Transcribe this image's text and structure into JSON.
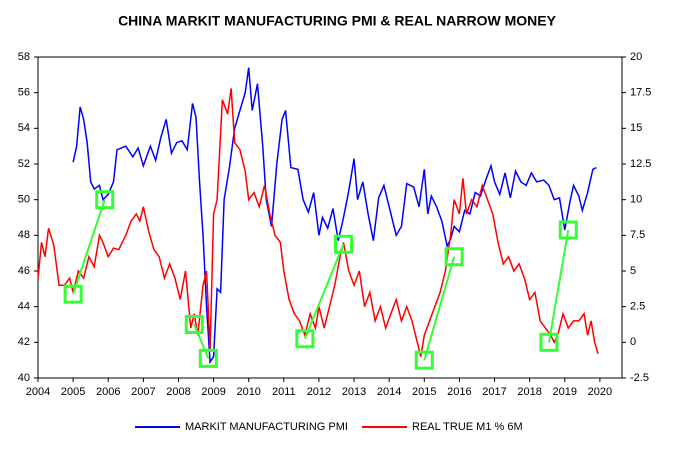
{
  "chart_data": {
    "type": "line",
    "title": "CHINA MARKIT MANUFACTURING PMI & REAL NARROW MONEY",
    "xlim": [
      2004,
      2020.63
    ],
    "xticks": [
      2004,
      2005,
      2006,
      2007,
      2008,
      2009,
      2010,
      2011,
      2012,
      2013,
      2014,
      2015,
      2016,
      2017,
      2018,
      2019,
      2020
    ],
    "ylim": [
      40,
      58
    ],
    "yticks": [
      40,
      42,
      44,
      46,
      48,
      50,
      52,
      54,
      56,
      58
    ],
    "y2lim": [
      -2.5,
      20
    ],
    "y2ticks": [
      -2.5,
      0,
      2.5,
      5,
      7.5,
      10,
      12.5,
      15,
      17.5,
      20
    ],
    "legend": "bottom",
    "series": [
      {
        "name": "MARKIT MANUFACTURING PMI",
        "color": "#0000ff",
        "x": [
          2005.0,
          2005.1,
          2005.2,
          2005.3,
          2005.4,
          2005.5,
          2005.6,
          2005.75,
          2005.85,
          2006.0,
          2006.15,
          2006.25,
          2006.5,
          2006.7,
          2006.85,
          2007.0,
          2007.2,
          2007.35,
          2007.5,
          2007.65,
          2007.8,
          2007.95,
          2008.1,
          2008.25,
          2008.4,
          2008.5,
          2008.6,
          2008.7,
          2008.8,
          2008.9,
          2009.0,
          2009.1,
          2009.2,
          2009.3,
          2009.45,
          2009.6,
          2009.75,
          2009.9,
          2010.0,
          2010.1,
          2010.25,
          2010.4,
          2010.5,
          2010.65,
          2010.8,
          2010.95,
          2011.05,
          2011.2,
          2011.4,
          2011.55,
          2011.7,
          2011.85,
          2012.0,
          2012.1,
          2012.25,
          2012.4,
          2012.55,
          2012.7,
          2012.85,
          2013.0,
          2013.1,
          2013.25,
          2013.4,
          2013.55,
          2013.7,
          2013.85,
          2014.0,
          2014.2,
          2014.35,
          2014.5,
          2014.7,
          2014.85,
          2015.0,
          2015.1,
          2015.2,
          2015.35,
          2015.5,
          2015.65,
          2015.75,
          2015.85,
          2016.0,
          2016.15,
          2016.3,
          2016.45,
          2016.6,
          2016.75,
          2016.9,
          2017.0,
          2017.15,
          2017.3,
          2017.45,
          2017.6,
          2017.75,
          2017.9,
          2018.05,
          2018.2,
          2018.4,
          2018.55,
          2018.7,
          2018.85,
          2019.0,
          2019.15,
          2019.25,
          2019.4,
          2019.5,
          2019.65,
          2019.8,
          2019.9
        ],
        "values": [
          52.1,
          53.0,
          55.2,
          54.5,
          53.2,
          51.0,
          50.6,
          50.8,
          50.0,
          50.3,
          51.0,
          52.8,
          53.0,
          52.4,
          52.9,
          51.9,
          53.0,
          52.2,
          53.5,
          54.5,
          52.6,
          53.2,
          53.3,
          52.8,
          55.4,
          54.6,
          51.0,
          48.0,
          44.0,
          40.9,
          41.2,
          45.0,
          44.8,
          50.0,
          51.8,
          54.0,
          55.0,
          56.0,
          57.4,
          55.0,
          56.5,
          53.0,
          50.0,
          48.5,
          52.0,
          54.5,
          55.0,
          51.8,
          51.7,
          50.0,
          49.3,
          50.4,
          48.0,
          49.0,
          48.4,
          49.5,
          47.7,
          49.0,
          50.5,
          52.3,
          50.0,
          51.0,
          49.2,
          47.7,
          50.1,
          50.8,
          49.6,
          48.0,
          48.5,
          50.9,
          50.7,
          49.6,
          51.7,
          49.2,
          50.2,
          49.6,
          48.8,
          47.4,
          47.8,
          48.5,
          48.2,
          49.4,
          49.2,
          50.4,
          50.2,
          51.1,
          51.9,
          51.0,
          50.3,
          51.5,
          50.1,
          51.6,
          51.0,
          50.8,
          51.5,
          51.0,
          51.1,
          50.8,
          50.0,
          50.1,
          48.3,
          49.9,
          50.8,
          50.2,
          49.4,
          50.4,
          51.7,
          51.8
        ]
      },
      {
        "name": "REAL TRUE M1 % 6M",
        "color": "#ff0000",
        "axis": "y2",
        "x": [
          2004.0,
          2004.1,
          2004.2,
          2004.3,
          2004.45,
          2004.6,
          2004.75,
          2004.9,
          2005.0,
          2005.15,
          2005.3,
          2005.45,
          2005.6,
          2005.75,
          2005.85,
          2006.0,
          2006.15,
          2006.3,
          2006.5,
          2006.65,
          2006.8,
          2006.9,
          2007.0,
          2007.15,
          2007.3,
          2007.45,
          2007.6,
          2007.75,
          2007.9,
          2008.05,
          2008.2,
          2008.35,
          2008.45,
          2008.55,
          2008.7,
          2008.8,
          2008.9,
          2009.0,
          2009.1,
          2009.25,
          2009.4,
          2009.5,
          2009.6,
          2009.75,
          2009.9,
          2010.0,
          2010.15,
          2010.3,
          2010.45,
          2010.6,
          2010.75,
          2010.9,
          2011.0,
          2011.15,
          2011.3,
          2011.45,
          2011.6,
          2011.75,
          2011.9,
          2012.0,
          2012.15,
          2012.3,
          2012.45,
          2012.6,
          2012.7,
          2012.85,
          2013.0,
          2013.15,
          2013.3,
          2013.45,
          2013.6,
          2013.75,
          2013.9,
          2014.05,
          2014.2,
          2014.35,
          2014.5,
          2014.65,
          2014.8,
          2014.9,
          2015.0,
          2015.15,
          2015.3,
          2015.45,
          2015.6,
          2015.75,
          2015.85,
          2016.0,
          2016.1,
          2016.2,
          2016.35,
          2016.5,
          2016.65,
          2016.8,
          2016.95,
          2017.1,
          2017.25,
          2017.4,
          2017.55,
          2017.7,
          2017.85,
          2018.0,
          2018.15,
          2018.3,
          2018.45,
          2018.6,
          2018.7,
          2018.8,
          2018.95,
          2019.1,
          2019.25,
          2019.4,
          2019.55,
          2019.65,
          2019.75,
          2019.85,
          2019.95
        ],
        "values": [
          4.5,
          7.0,
          6.0,
          8.0,
          6.8,
          4.0,
          4.0,
          4.5,
          3.5,
          5.0,
          4.5,
          6.0,
          5.3,
          7.5,
          7.0,
          6.0,
          6.6,
          6.5,
          7.5,
          8.5,
          9.0,
          8.5,
          9.5,
          7.8,
          6.5,
          6.0,
          4.5,
          5.5,
          4.5,
          3.0,
          5.0,
          1.0,
          2.0,
          0.5,
          4.0,
          5.0,
          -0.5,
          9.0,
          10.0,
          17.0,
          16.0,
          17.8,
          14.0,
          13.5,
          12.0,
          10.0,
          10.5,
          9.5,
          11.0,
          9.0,
          7.5,
          7.0,
          5.0,
          3.0,
          2.0,
          1.5,
          0.5,
          2.0,
          1.0,
          2.5,
          1.0,
          2.5,
          4.0,
          6.0,
          7.0,
          5.0,
          4.0,
          5.0,
          2.5,
          3.5,
          1.5,
          2.5,
          1.0,
          2.0,
          3.0,
          1.5,
          2.5,
          1.5,
          0.0,
          -1.0,
          0.5,
          1.5,
          2.5,
          3.5,
          5.0,
          7.5,
          10.0,
          9.0,
          11.5,
          9.0,
          10.0,
          9.5,
          11.0,
          10.0,
          9.0,
          7.0,
          5.5,
          6.0,
          5.0,
          5.5,
          4.5,
          3.0,
          3.5,
          1.5,
          1.0,
          0.5,
          0.0,
          0.5,
          2.0,
          1.0,
          1.5,
          1.5,
          2.0,
          0.5,
          1.5,
          0.0,
          -0.8
        ]
      }
    ],
    "markers": {
      "color": "#33ff33",
      "pairs": [
        {
          "x": [
            2005.0,
            2005.9
          ],
          "y": [
            44.7,
            50.0
          ]
        },
        {
          "x": [
            2008.45,
            2008.85
          ],
          "y": [
            43.0,
            41.1
          ]
        },
        {
          "x": [
            2011.6,
            2012.7
          ],
          "y": [
            42.2,
            47.5
          ]
        },
        {
          "x": [
            2015.0,
            2015.85
          ],
          "y": [
            41.0,
            46.8
          ]
        },
        {
          "x": [
            2018.55,
            2019.1
          ],
          "y": [
            42.0,
            48.3
          ]
        }
      ]
    }
  }
}
